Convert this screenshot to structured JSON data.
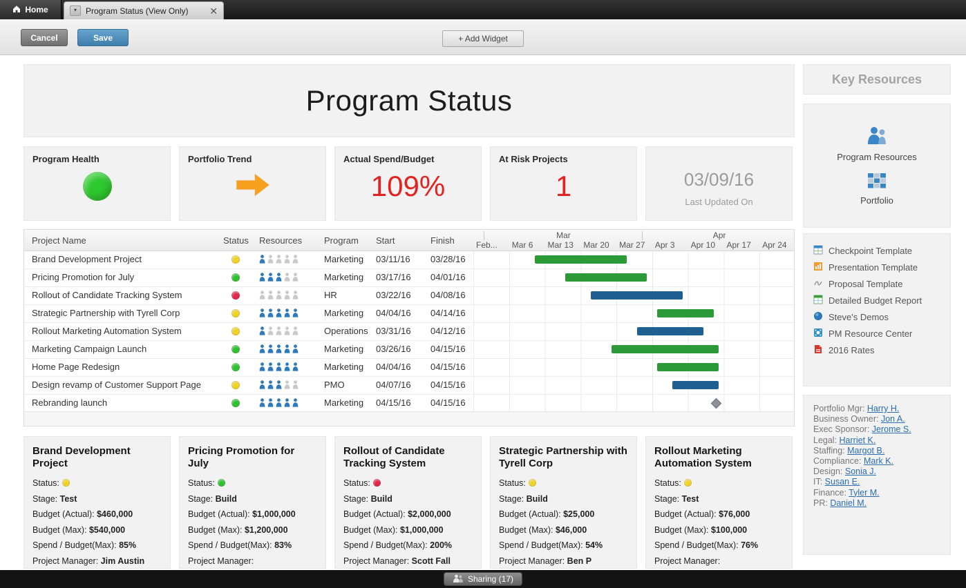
{
  "window": {
    "tabs": [
      {
        "label": "Home"
      },
      {
        "label": "Program Status (View Only)"
      }
    ]
  },
  "toolbar": {
    "cancel": "Cancel",
    "save": "Save",
    "add_widget": "+ Add Widget"
  },
  "dashboard": {
    "title": "Program Status",
    "metrics": {
      "health": {
        "title": "Program Health",
        "status_color": "#2ec92e"
      },
      "trend": {
        "title": "Portfolio Trend",
        "arrow_color": "#f6a120"
      },
      "spend": {
        "title": "Actual Spend/Budget",
        "value": "109%",
        "value_color": "#e32222"
      },
      "risk": {
        "title": "At Risk Projects",
        "value": "1",
        "value_color": "#e32222"
      },
      "updated": {
        "value": "03/09/16",
        "label": "Last Updated On"
      }
    },
    "gantt": {
      "columns": {
        "name": "Project Name",
        "status": "Status",
        "resources": "Resources",
        "program": "Program",
        "start": "Start",
        "finish": "Finish"
      },
      "months": [
        {
          "label": "Mar"
        },
        {
          "label": "Apr"
        }
      ],
      "weeks": [
        "Feb...",
        "Mar 6",
        "Mar 13",
        "Mar 20",
        "Mar 27",
        "Apr 3",
        "Apr 10",
        "Apr 17",
        "Apr 24"
      ],
      "rows": [
        {
          "name": "Brand Development Project",
          "status": "yellow",
          "resources_active": 1,
          "resources_total": 5,
          "program": "Marketing",
          "start": "03/11/16",
          "finish": "03/28/16",
          "bar": "green"
        },
        {
          "name": "Pricing Promotion for July",
          "status": "green",
          "resources_active": 3,
          "resources_total": 5,
          "program": "Marketing",
          "start": "03/17/16",
          "finish": "04/01/16",
          "bar": "green"
        },
        {
          "name": "Rollout of Candidate Tracking System",
          "status": "red",
          "resources_active": 0,
          "resources_total": 5,
          "program": "HR",
          "start": "03/22/16",
          "finish": "04/08/16",
          "bar": "blue"
        },
        {
          "name": "Strategic Partnership with Tyrell Corp",
          "status": "yellow",
          "resources_active": 5,
          "resources_total": 5,
          "program": "Marketing",
          "start": "04/04/16",
          "finish": "04/14/16",
          "bar": "green"
        },
        {
          "name": "Rollout Marketing Automation System",
          "status": "yellow",
          "resources_active": 1,
          "resources_total": 5,
          "program": "Operations",
          "start": "03/31/16",
          "finish": "04/12/16",
          "bar": "blue"
        },
        {
          "name": "Marketing Campaign Launch",
          "status": "green",
          "resources_active": 5,
          "resources_total": 5,
          "program": "Marketing",
          "start": "03/26/16",
          "finish": "04/15/16",
          "bar": "green"
        },
        {
          "name": "Home Page Redesign",
          "status": "green",
          "resources_active": 5,
          "resources_total": 5,
          "program": "Marketing",
          "start": "04/04/16",
          "finish": "04/15/16",
          "bar": "green"
        },
        {
          "name": "Design revamp of Customer Support Page",
          "status": "yellow",
          "resources_active": 3,
          "resources_total": 5,
          "program": "PMO",
          "start": "04/07/16",
          "finish": "04/15/16",
          "bar": "blue"
        },
        {
          "name": "Rebranding launch",
          "status": "green",
          "resources_active": 5,
          "resources_total": 5,
          "program": "Marketing",
          "start": "04/15/16",
          "finish": "04/15/16",
          "milestone": true
        }
      ]
    },
    "card_labels": {
      "status": "Status:",
      "stage": "Stage:",
      "budget_actual": "Budget (Actual):",
      "budget_max": "Budget (Max):",
      "spend": "Spend / Budget(Max):",
      "pm": "Project Manager:"
    },
    "cards": [
      {
        "title": "Brand Development Project",
        "status": "yellow",
        "stage": "Test",
        "budget_actual": "$460,000",
        "budget_max": "$540,000",
        "spend": "85%",
        "pm": "Jim Austin"
      },
      {
        "title": "Pricing Promotion for July",
        "status": "green",
        "stage": "Build",
        "budget_actual": "$1,000,000",
        "budget_max": "$1,200,000",
        "spend": "83%",
        "pm": ""
      },
      {
        "title": "Rollout of Candidate Tracking System",
        "status": "red",
        "stage": "Build",
        "budget_actual": "$2,000,000",
        "budget_max": "$1,000,000",
        "spend": "200%",
        "pm": "Scott Fall"
      },
      {
        "title": "Strategic Partnership with Tyrell Corp",
        "status": "yellow",
        "stage": "Build",
        "budget_actual": "$25,000",
        "budget_max": "$46,000",
        "spend": "54%",
        "pm": "Ben P"
      },
      {
        "title": "Rollout Marketing Automation System",
        "status": "yellow",
        "stage": "Test",
        "budget_actual": "$76,000",
        "budget_max": "$100,000",
        "spend": "76%",
        "pm": ""
      }
    ]
  },
  "sidebar": {
    "key_resources_title": "Key Resources",
    "shortcuts": [
      {
        "label": "Program Resources",
        "icon": "people-icon"
      },
      {
        "label": "Portfolio",
        "icon": "grid-icon"
      }
    ],
    "links": [
      {
        "label": "Checkpoint Template",
        "icon": "sheet-blue"
      },
      {
        "label": "Presentation Template",
        "icon": "chart-orange"
      },
      {
        "label": "Proposal Template",
        "icon": "scribble-gray"
      },
      {
        "label": "Detailed Budget Report",
        "icon": "sheet-green"
      },
      {
        "label": "Steve's Demos",
        "icon": "globe-blue"
      },
      {
        "label": "PM Resource Center",
        "icon": "app-blue"
      },
      {
        "label": "2016 Rates",
        "icon": "pdf-red"
      }
    ],
    "contacts": [
      {
        "label": "Portfolio Mgr:",
        "name": "Harry H."
      },
      {
        "label": "Business Owner:",
        "name": "Jon A."
      },
      {
        "label": "Exec Sponsor:",
        "name": "Jerome S."
      },
      {
        "label": "Legal:",
        "name": "Harriet K."
      },
      {
        "label": "Staffing:",
        "name": "Margot B."
      },
      {
        "label": "Compliance:",
        "name": "Mark K."
      },
      {
        "label": "Design:",
        "name": "Sonia J."
      },
      {
        "label": "IT:",
        "name": "Susan E."
      },
      {
        "label": "Finance:",
        "name": "Tyler M."
      },
      {
        "label": "PR:",
        "name": "Daniel M."
      }
    ]
  },
  "footer": {
    "sharing": "Sharing (17)"
  },
  "colors": {
    "status_yellow": "#efd32b",
    "status_green": "#32c032",
    "status_red": "#e02a49",
    "bar_green": "#2c9a38",
    "bar_blue": "#205f92",
    "resource_active": "#2e79b9",
    "resource_inactive": "#c9c9c9",
    "link_blue": "#2a6db3"
  }
}
